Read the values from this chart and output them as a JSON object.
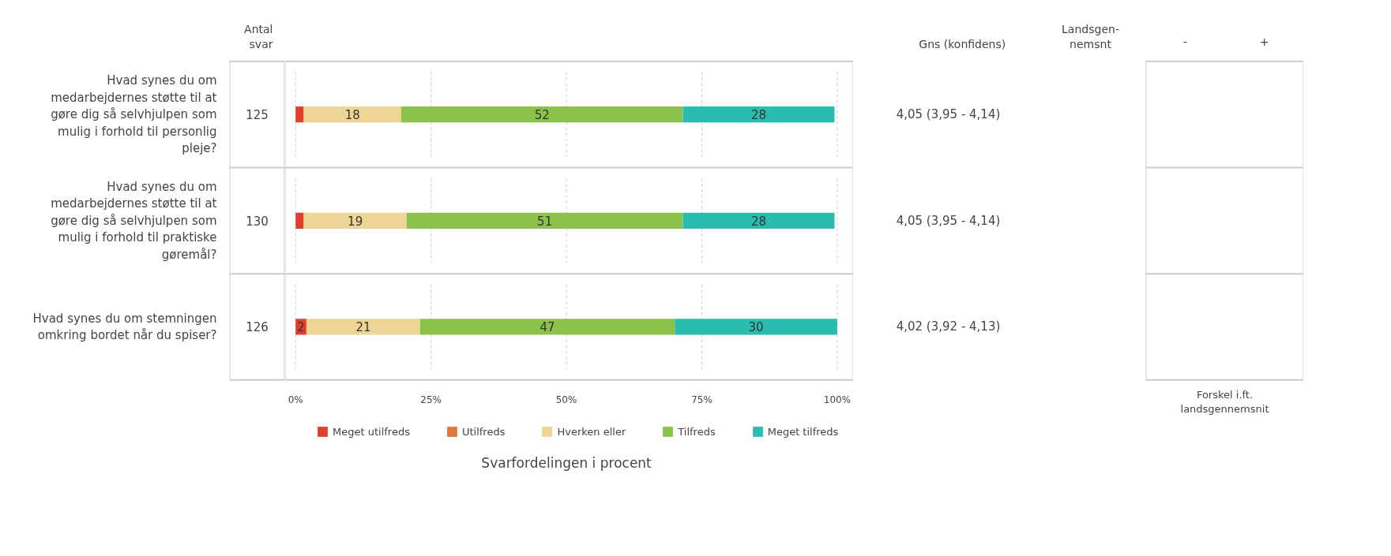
{
  "chart_data": {
    "type": "bar",
    "orientation": "horizontal",
    "stacked": true,
    "categories": [
      "Hvad synes du om medarbejdernes støtte til at gøre dig så selvhjulpen som mulig i forhold til personlig pleje?",
      "Hvad synes du om medarbejdernes støtte til at gøre dig så selvhjulpen som mulig i forhold til praktiske gøremål?",
      "Hvad synes du om stemningen omkring bordet når du spiser?"
    ],
    "series": [
      {
        "name": "Meget utilfreds",
        "color": "#e2402f",
        "values": [
          1.5,
          1.5,
          2
        ],
        "value_labels": [
          null,
          null,
          "2"
        ]
      },
      {
        "name": "Utilfreds",
        "color": "#e2773a",
        "values": [
          0,
          0,
          0
        ],
        "value_labels": [
          null,
          null,
          null
        ]
      },
      {
        "name": "Hverken eller",
        "color": "#edd595",
        "values": [
          18,
          19,
          21
        ],
        "value_labels": [
          "18",
          "19",
          "21"
        ]
      },
      {
        "name": "Tilfreds",
        "color": "#8bc34a",
        "values": [
          52,
          51,
          47
        ],
        "value_labels": [
          "52",
          "51",
          "47"
        ]
      },
      {
        "name": "Meget tilfreds",
        "color": "#2bbcb0",
        "values": [
          28,
          28,
          30
        ],
        "value_labels": [
          "28",
          "28",
          "30"
        ]
      }
    ],
    "xlim": [
      0,
      100
    ],
    "xticks": [
      {
        "value": 0,
        "label": "0%"
      },
      {
        "value": 25,
        "label": "25%"
      },
      {
        "value": 50,
        "label": "50%"
      },
      {
        "value": 75,
        "label": "75%"
      },
      {
        "value": 100,
        "label": "100%"
      }
    ],
    "xlabel": "Svarfordelingen i procent",
    "grid": "x",
    "legend": "bottom",
    "annotations": [
      "Antal\nsvar",
      "125",
      "130",
      "126",
      "Gns  (konfidens)",
      "4,05 (3,95 - 4,14)",
      "4,05 (3,95 - 4,14)",
      "4,02 (3,92 - 4,13)",
      "Landsgen-\nnemsnt",
      "-",
      "+",
      "Forskel i.ft.\nlandsgennemsnit"
    ]
  }
}
